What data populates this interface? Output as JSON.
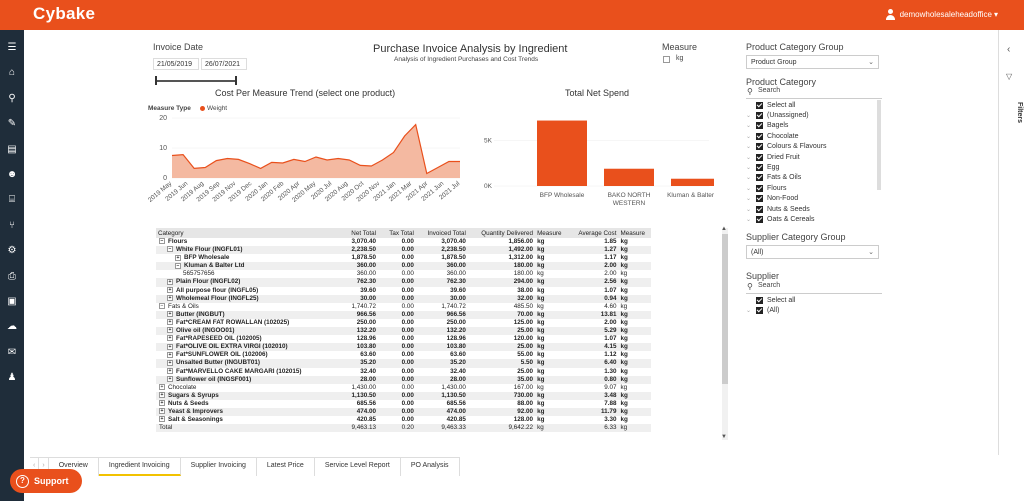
{
  "app": {
    "logo": "Cybake",
    "user": "demowholesaleheadoffice",
    "user_caret": "▾"
  },
  "sidebar_icons": [
    "menu-icon",
    "home-icon",
    "search-icon",
    "edit-icon",
    "archive-icon",
    "users-icon",
    "factory-icon",
    "utensils-icon",
    "gear-icon",
    "print-icon",
    "money-icon",
    "cloud-upload-icon",
    "mail-icon",
    "user-cog-icon"
  ],
  "invoice_date": {
    "label": "Invoice Date",
    "start": "21/05/2019",
    "end": "26/07/2021"
  },
  "report": {
    "title": "Purchase Invoice Analysis by Ingredient",
    "subtitle": "Analysis of Ingredient Purchases and Cost Trends"
  },
  "measure": {
    "label": "Measure",
    "option": "kg"
  },
  "trend_chart": {
    "title": "Cost Per Measure Trend (select one product)",
    "legend_label": "Measure Type",
    "legend_item": "Weight",
    "color": "#e9501c",
    "fill": "#f4b9a1"
  },
  "net_spend_chart": {
    "title": "Total Net Spend",
    "color": "#e9501c"
  },
  "chart_data": [
    {
      "type": "area",
      "title": "Cost Per Measure Trend (select one product)",
      "x": [
        "2019 May",
        "2019 Jun",
        "2019 Jul",
        "2019 Aug",
        "2019 Sep",
        "2019 Oct",
        "2019 Nov",
        "2019 Dec",
        "2020 Jan",
        "2020 Feb",
        "2020 Mar",
        "2020 Apr",
        "2020 May",
        "2020 Jun",
        "2020 Jul",
        "2020 Aug",
        "2020 Sep",
        "2020 Oct",
        "2020 Nov",
        "2020 Dec",
        "2021 Jan",
        "2021 Feb",
        "2021 Mar",
        "2021 Apr",
        "2021 May",
        "2021 Jun",
        "2021 Jul"
      ],
      "x_tick_labels": [
        "2019 May",
        "2019 Jun",
        "2019 Aug",
        "2019 Sep",
        "2019 Nov",
        "2019 Dec",
        "2020 Jan",
        "2020 Feb",
        "2020 Apr",
        "2020 May",
        "2020 Jul",
        "2020 Aug",
        "2020 Oct",
        "2020 Nov",
        "2021 Jan",
        "2021 Mar",
        "2021 Apr",
        "2021 Jun",
        "2021 Jul"
      ],
      "series": [
        {
          "name": "Weight",
          "values": [
            7.5,
            7.8,
            3.2,
            3.5,
            5.8,
            6.5,
            6.2,
            4.8,
            3.2,
            5.2,
            5.0,
            6.2,
            5.5,
            7.0,
            6.0,
            6.5,
            6.0,
            4.2,
            4.0,
            6.0,
            8.5,
            14.0,
            17.8,
            1.5,
            3.5,
            5.5,
            5.5
          ]
        }
      ],
      "yticks": [
        0,
        10,
        20
      ],
      "ylim": [
        0,
        20
      ]
    },
    {
      "type": "bar",
      "title": "Total Net Spend",
      "categories": [
        "BFP Wholesale",
        "BAKO NORTH WESTERN",
        "Kluman & Balter Ltd"
      ],
      "category_lines": [
        [
          "BFP Wholesale"
        ],
        [
          "BAKO NORTH",
          "WESTERN"
        ],
        [
          "Kluman & Balter Ltd"
        ]
      ],
      "values": [
        7200,
        1900,
        800
      ],
      "yticks": [
        "0K",
        "5K"
      ],
      "ylim": [
        0,
        7700
      ]
    }
  ],
  "table": {
    "headers": [
      "Category",
      "Net Total",
      "Tax Total",
      "Invoiced Total",
      "Quantity Delivered",
      "Measure",
      "Average Cost",
      "Measure"
    ],
    "rows": [
      {
        "indent": 0,
        "pm": "−",
        "name": "Flours",
        "net": "3,070.40",
        "tax": "0.00",
        "inv": "3,070.40",
        "qty": "1,856.00",
        "m1": "kg",
        "avg": "1.85",
        "m2": "kg",
        "bold": true
      },
      {
        "indent": 1,
        "pm": "−",
        "name": "White Flour (INGFL01)",
        "net": "2,238.50",
        "tax": "0.00",
        "inv": "2,238.50",
        "qty": "1,492.00",
        "m1": "kg",
        "avg": "1.27",
        "m2": "kg",
        "bold": true
      },
      {
        "indent": 2,
        "pm": "+",
        "name": "BFP Wholesale",
        "net": "1,878.50",
        "tax": "0.00",
        "inv": "1,878.50",
        "qty": "1,312.00",
        "m1": "kg",
        "avg": "1.17",
        "m2": "kg",
        "bold": true
      },
      {
        "indent": 2,
        "pm": "−",
        "name": "Kluman & Balter Ltd",
        "net": "360.00",
        "tax": "0.00",
        "inv": "360.00",
        "qty": "180.00",
        "m1": "kg",
        "avg": "2.00",
        "m2": "kg",
        "bold": true
      },
      {
        "indent": 3,
        "pm": "",
        "name": "565757656",
        "net": "360.00",
        "tax": "0.00",
        "inv": "360.00",
        "qty": "180.00",
        "m1": "kg",
        "avg": "2.00",
        "m2": "kg",
        "bold": false
      },
      {
        "indent": 1,
        "pm": "+",
        "name": "Plain Flour (INGFL02)",
        "net": "762.30",
        "tax": "0.00",
        "inv": "762.30",
        "qty": "294.00",
        "m1": "kg",
        "avg": "2.56",
        "m2": "kg",
        "bold": true
      },
      {
        "indent": 1,
        "pm": "+",
        "name": "All purpose flour (INGFL05)",
        "net": "39.60",
        "tax": "0.00",
        "inv": "39.60",
        "qty": "38.00",
        "m1": "kg",
        "avg": "1.07",
        "m2": "kg",
        "bold": true
      },
      {
        "indent": 1,
        "pm": "+",
        "name": "Wholemeal Flour (INGFL25)",
        "net": "30.00",
        "tax": "0.00",
        "inv": "30.00",
        "qty": "32.00",
        "m1": "kg",
        "avg": "0.94",
        "m2": "kg",
        "bold": true
      },
      {
        "indent": 0,
        "pm": "−",
        "name": "Fats & Oils",
        "net": "1,740.72",
        "tax": "0.00",
        "inv": "1,740.72",
        "qty": "485.50",
        "m1": "kg",
        "avg": "4.60",
        "m2": "kg",
        "bold": false
      },
      {
        "indent": 1,
        "pm": "+",
        "name": "Butter (INGBUT)",
        "net": "966.56",
        "tax": "0.00",
        "inv": "966.56",
        "qty": "70.00",
        "m1": "kg",
        "avg": "13.81",
        "m2": "kg",
        "bold": true
      },
      {
        "indent": 1,
        "pm": "+",
        "name": "Fat*CREAM FAT ROWALLAN (102025)",
        "net": "250.00",
        "tax": "0.00",
        "inv": "250.00",
        "qty": "125.00",
        "m1": "kg",
        "avg": "2.00",
        "m2": "kg",
        "bold": true
      },
      {
        "indent": 1,
        "pm": "+",
        "name": "Olive oil (INGOO01)",
        "net": "132.20",
        "tax": "0.00",
        "inv": "132.20",
        "qty": "25.00",
        "m1": "kg",
        "avg": "5.29",
        "m2": "kg",
        "bold": true
      },
      {
        "indent": 1,
        "pm": "+",
        "name": "Fat*RAPESEED OIL (102005)",
        "net": "128.96",
        "tax": "0.00",
        "inv": "128.96",
        "qty": "120.00",
        "m1": "kg",
        "avg": "1.07",
        "m2": "kg",
        "bold": true
      },
      {
        "indent": 1,
        "pm": "+",
        "name": "Fat*OLIVE OIL EXTRA VIRGI (102010)",
        "net": "103.80",
        "tax": "0.00",
        "inv": "103.80",
        "qty": "25.00",
        "m1": "kg",
        "avg": "4.15",
        "m2": "kg",
        "bold": true
      },
      {
        "indent": 1,
        "pm": "+",
        "name": "Fat*SUNFLOWER OIL (102006)",
        "net": "63.60",
        "tax": "0.00",
        "inv": "63.60",
        "qty": "55.00",
        "m1": "kg",
        "avg": "1.12",
        "m2": "kg",
        "bold": true
      },
      {
        "indent": 1,
        "pm": "+",
        "name": "Unsalted Butter (INGUBT01)",
        "net": "35.20",
        "tax": "0.00",
        "inv": "35.20",
        "qty": "5.50",
        "m1": "kg",
        "avg": "6.40",
        "m2": "kg",
        "bold": true
      },
      {
        "indent": 1,
        "pm": "+",
        "name": "Fat*MARVELLO CAKE MARGARI (102015)",
        "net": "32.40",
        "tax": "0.00",
        "inv": "32.40",
        "qty": "25.00",
        "m1": "kg",
        "avg": "1.30",
        "m2": "kg",
        "bold": true
      },
      {
        "indent": 1,
        "pm": "+",
        "name": "Sunflower oil (INGSF001)",
        "net": "28.00",
        "tax": "0.00",
        "inv": "28.00",
        "qty": "35.00",
        "m1": "kg",
        "avg": "0.80",
        "m2": "kg",
        "bold": true
      },
      {
        "indent": 0,
        "pm": "+",
        "name": "Chocolate",
        "net": "1,430.00",
        "tax": "0.00",
        "inv": "1,430.00",
        "qty": "167.00",
        "m1": "kg",
        "avg": "9.07",
        "m2": "kg",
        "bold": false
      },
      {
        "indent": 0,
        "pm": "+",
        "name": "Sugars & Syrups",
        "net": "1,130.50",
        "tax": "0.00",
        "inv": "1,130.50",
        "qty": "730.00",
        "m1": "kg",
        "avg": "3.48",
        "m2": "kg",
        "bold": true
      },
      {
        "indent": 0,
        "pm": "+",
        "name": "Nuts & Seeds",
        "net": "685.56",
        "tax": "0.00",
        "inv": "685.56",
        "qty": "88.00",
        "m1": "kg",
        "avg": "7.88",
        "m2": "kg",
        "bold": true
      },
      {
        "indent": 0,
        "pm": "+",
        "name": "Yeast & Improvers",
        "net": "474.00",
        "tax": "0.00",
        "inv": "474.00",
        "qty": "92.00",
        "m1": "kg",
        "avg": "11.79",
        "m2": "kg",
        "bold": true
      },
      {
        "indent": 0,
        "pm": "+",
        "name": "Salt & Seasonings",
        "net": "420.85",
        "tax": "0.00",
        "inv": "420.85",
        "qty": "128.00",
        "m1": "kg",
        "avg": "3.30",
        "m2": "kg",
        "bold": true
      },
      {
        "indent": 0,
        "pm": "",
        "name": "Total",
        "net": "9,463.13",
        "tax": "0.20",
        "inv": "9,463.33",
        "qty": "9,642.22",
        "m1": "kg",
        "avg": "6.33",
        "m2": "kg",
        "bold": false
      }
    ]
  },
  "filters": {
    "product_category_group": {
      "label": "Product Category Group",
      "value": "Product Group"
    },
    "product_category": {
      "label": "Product Category",
      "search": "Search",
      "items": [
        "Select all",
        "(Unassigned)",
        "Bagels",
        "Chocolate",
        "Colours & Flavours",
        "Dried Fruit",
        "Egg",
        "Fats & Oils",
        "Flours",
        "Non-Food",
        "Nuts & Seeds",
        "Oats & Cereals"
      ]
    },
    "supplier_category_group": {
      "label": "Supplier Category Group",
      "value": "(All)"
    },
    "supplier": {
      "label": "Supplier",
      "search": "Search",
      "items": [
        "Select all",
        "(All)"
      ]
    },
    "panel_label": "Filters",
    "collapse_arrow": "‹"
  },
  "tabs": [
    "Overview",
    "Ingredient Invoicing",
    "Supplier Invoicing",
    "Latest Price",
    "Service Level Report",
    "PO Analysis"
  ],
  "active_tab": 1,
  "tab_nav": {
    "prev": "‹",
    "next": "›"
  },
  "support": {
    "label": "Support",
    "glyph": "?"
  }
}
